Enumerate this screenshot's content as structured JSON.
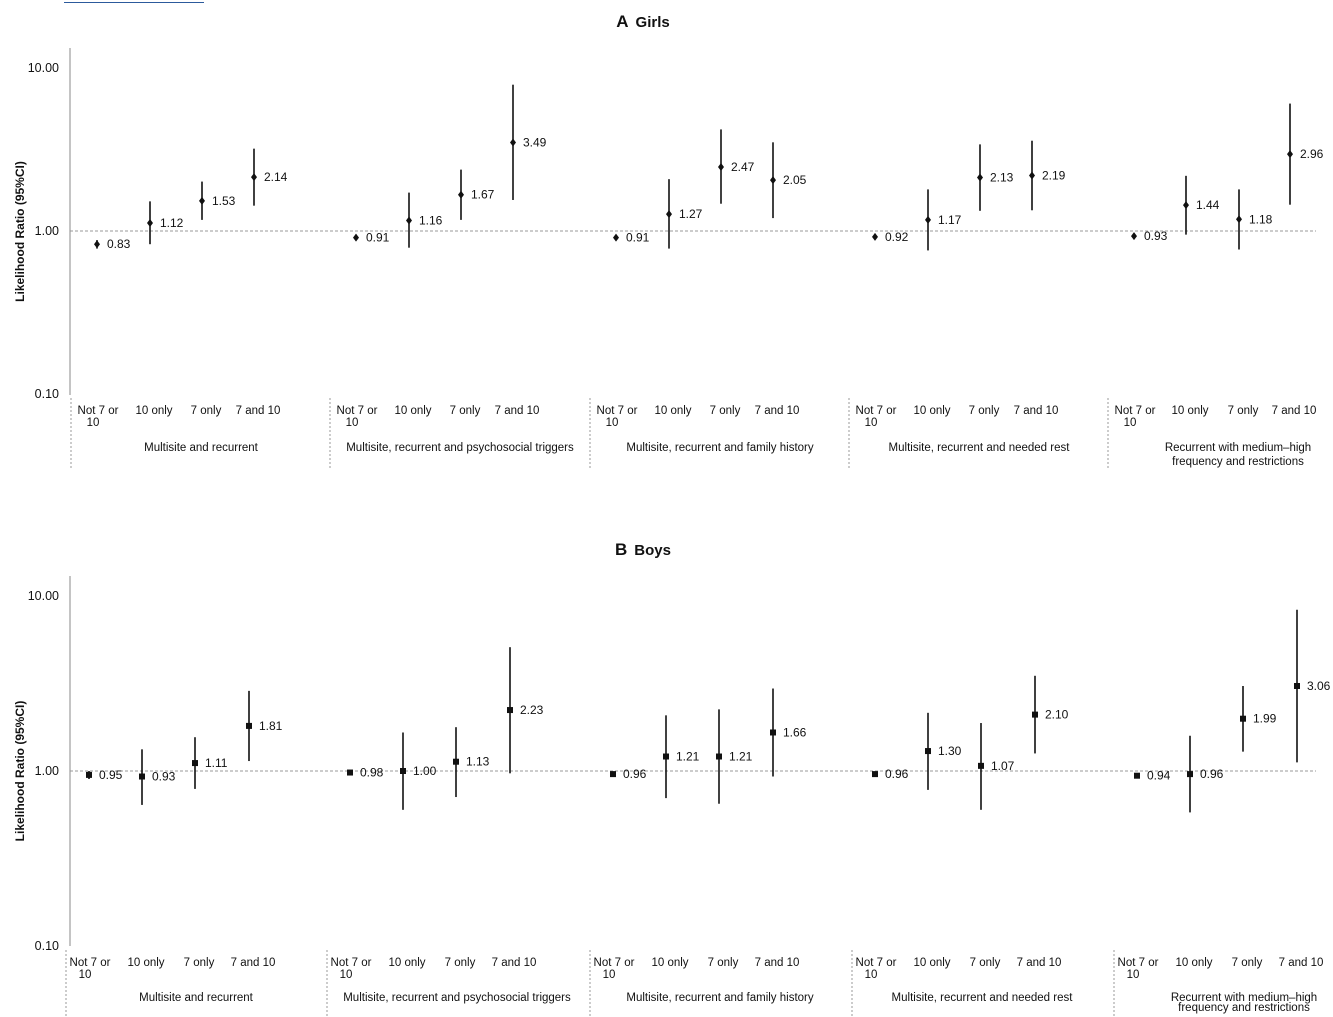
{
  "chart_data": [
    {
      "type": "scatter",
      "panel_letter": "A",
      "title": "Girls",
      "ylabel": "Likelihood Ratio (95%CI)",
      "yscale": "log",
      "ylim": [
        0.1,
        10
      ],
      "yticks": [
        "0.10",
        "1.00",
        "10.00"
      ],
      "reference_line": 1,
      "marker": "diamond",
      "x_tick_labels": [
        "Not 7 or 10",
        "10 only",
        "7 only",
        "7 and 10"
      ],
      "groups": [
        {
          "label": "Multisite and recurrent",
          "points": [
            {
              "x": "Not 7 or 10",
              "value": 0.83,
              "label": "0.83",
              "lo": 0.78,
              "hi": 0.88
            },
            {
              "x": "10 only",
              "value": 1.12,
              "label": "1.12",
              "lo": 0.83,
              "hi": 1.52
            },
            {
              "x": "7 only",
              "value": 1.53,
              "label": "1.53",
              "lo": 1.17,
              "hi": 2.01
            },
            {
              "x": "7 and 10",
              "value": 2.14,
              "label": "2.14",
              "lo": 1.43,
              "hi": 3.2
            }
          ]
        },
        {
          "label": "Multisite, recurrent and psychosocial triggers",
          "points": [
            {
              "x": "Not 7 or 10",
              "value": 0.91,
              "label": "0.91",
              "lo": 0.88,
              "hi": 0.95
            },
            {
              "x": "10 only",
              "value": 1.16,
              "label": "1.16",
              "lo": 0.79,
              "hi": 1.72
            },
            {
              "x": "7 only",
              "value": 1.67,
              "label": "1.67",
              "lo": 1.17,
              "hi": 2.38
            },
            {
              "x": "7 and 10",
              "value": 3.49,
              "label": "3.49",
              "lo": 1.55,
              "hi": 7.9
            }
          ]
        },
        {
          "label": "Multisite, recurrent and family history",
          "points": [
            {
              "x": "Not 7 or 10",
              "value": 0.91,
              "label": "0.91",
              "lo": 0.89,
              "hi": 0.93
            },
            {
              "x": "10 only",
              "value": 1.27,
              "label": "1.27",
              "lo": 0.78,
              "hi": 2.08
            },
            {
              "x": "7 only",
              "value": 2.47,
              "label": "2.47",
              "lo": 1.47,
              "hi": 4.2
            },
            {
              "x": "7 and 10",
              "value": 2.05,
              "label": "2.05",
              "lo": 1.2,
              "hi": 3.5
            }
          ]
        },
        {
          "label": "Multisite, recurrent and needed rest",
          "points": [
            {
              "x": "Not 7 or 10",
              "value": 0.92,
              "label": "0.92",
              "lo": 0.9,
              "hi": 0.94
            },
            {
              "x": "10 only",
              "value": 1.17,
              "label": "1.17",
              "lo": 0.76,
              "hi": 1.8
            },
            {
              "x": "7 only",
              "value": 2.13,
              "label": "2.13",
              "lo": 1.33,
              "hi": 3.4
            },
            {
              "x": "7 and 10",
              "value": 2.19,
              "label": "2.19",
              "lo": 1.34,
              "hi": 3.58
            }
          ]
        },
        {
          "label": "Recurrent with medium–high frequency and restrictions",
          "points": [
            {
              "x": "Not 7 or 10",
              "value": 0.93,
              "label": "0.93",
              "lo": 0.9,
              "hi": 0.96
            },
            {
              "x": "10 only",
              "value": 1.44,
              "label": "1.44",
              "lo": 0.95,
              "hi": 2.18
            },
            {
              "x": "7 only",
              "value": 1.18,
              "label": "1.18",
              "lo": 0.77,
              "hi": 1.8
            },
            {
              "x": "7 and 10",
              "value": 2.96,
              "label": "2.96",
              "lo": 1.45,
              "hi": 6.05
            }
          ]
        }
      ]
    },
    {
      "type": "scatter",
      "panel_letter": "B",
      "title": "Boys",
      "ylabel": "Likelihood Ratio (95%CI)",
      "yscale": "log",
      "ylim": [
        0.1,
        10
      ],
      "yticks": [
        "0.10",
        "1.00",
        "10.00"
      ],
      "reference_line": 1,
      "marker": "square",
      "x_tick_labels": [
        "Not 7 or 10",
        "10 only",
        "7 only",
        "7 and 10"
      ],
      "groups": [
        {
          "label": "Multisite and recurrent",
          "points": [
            {
              "x": "Not 7 or 10",
              "value": 0.95,
              "label": "0.95",
              "lo": 0.9,
              "hi": 1.0
            },
            {
              "x": "10 only",
              "value": 0.93,
              "label": "0.93",
              "lo": 0.64,
              "hi": 1.33
            },
            {
              "x": "7 only",
              "value": 1.11,
              "label": "1.11",
              "lo": 0.79,
              "hi": 1.56
            },
            {
              "x": "7 and 10",
              "value": 1.81,
              "label": "1.81",
              "lo": 1.14,
              "hi": 2.87
            }
          ]
        },
        {
          "label": "Multisite, recurrent and psychosocial triggers",
          "points": [
            {
              "x": "Not 7 or 10",
              "value": 0.98,
              "label": "0.98",
              "lo": 0.96,
              "hi": 1.0
            },
            {
              "x": "10 only",
              "value": 1.0,
              "label": "1.00",
              "lo": 0.6,
              "hi": 1.66
            },
            {
              "x": "7 only",
              "value": 1.13,
              "label": "1.13",
              "lo": 0.71,
              "hi": 1.78
            },
            {
              "x": "7 and 10",
              "value": 2.23,
              "label": "2.23",
              "lo": 0.97,
              "hi": 5.1
            }
          ]
        },
        {
          "label": "Multisite, recurrent and family history",
          "points": [
            {
              "x": "Not 7 or 10",
              "value": 0.96,
              "label": "0.96",
              "lo": 0.94,
              "hi": 0.98
            },
            {
              "x": "10 only",
              "value": 1.21,
              "label": "1.21",
              "lo": 0.7,
              "hi": 2.08
            },
            {
              "x": "7 only",
              "value": 1.21,
              "label": "1.21",
              "lo": 0.65,
              "hi": 2.25
            },
            {
              "x": "7 and 10",
              "value": 1.66,
              "label": "1.66",
              "lo": 0.93,
              "hi": 2.96
            }
          ]
        },
        {
          "label": "Multisite, recurrent and needed rest",
          "points": [
            {
              "x": "Not 7 or 10",
              "value": 0.96,
              "label": "0.96",
              "lo": 0.94,
              "hi": 0.98
            },
            {
              "x": "10 only",
              "value": 1.3,
              "label": "1.30",
              "lo": 0.78,
              "hi": 2.15
            },
            {
              "x": "7 only",
              "value": 1.07,
              "label": "1.07",
              "lo": 0.6,
              "hi": 1.88
            },
            {
              "x": "7 and 10",
              "value": 2.1,
              "label": "2.10",
              "lo": 1.26,
              "hi": 3.5
            }
          ]
        },
        {
          "label": "Recurrent with medium–high frequency and restrictions",
          "points": [
            {
              "x": "Not 7 or 10",
              "value": 0.94,
              "label": "0.94",
              "lo": 0.92,
              "hi": 0.96
            },
            {
              "x": "10 only",
              "value": 0.96,
              "label": "0.96",
              "lo": 0.58,
              "hi": 1.59
            },
            {
              "x": "7 only",
              "value": 1.99,
              "label": "1.99",
              "lo": 1.29,
              "hi": 3.06
            },
            {
              "x": "7 and 10",
              "value": 3.06,
              "label": "3.06",
              "lo": 1.12,
              "hi": 8.35
            }
          ]
        }
      ]
    }
  ]
}
